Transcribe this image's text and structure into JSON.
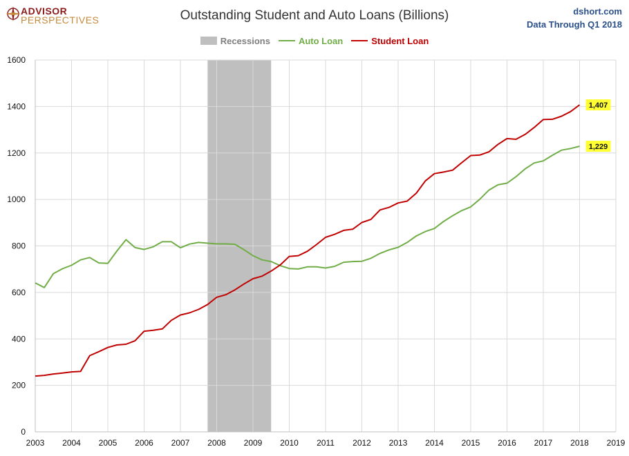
{
  "logo": {
    "top": "ADVISOR",
    "bottom": "PERSPECTIVES"
  },
  "source": {
    "line1": "dshort.com",
    "line2": "Data Through Q1 2018"
  },
  "colors": {
    "auto": "#70ad47",
    "student": "#c00000",
    "recession": "#bfbfbf",
    "highlight": "#ffff33",
    "grid": "#d9d9d9"
  },
  "chart_data": {
    "type": "line",
    "title": "Outstanding Student and Auto Loans (Billions)",
    "xlabel": "",
    "ylabel": "",
    "xlim": [
      2003,
      2019
    ],
    "ylim": [
      0,
      1600
    ],
    "x_ticks": [
      "2003",
      "2004",
      "2005",
      "2006",
      "2007",
      "2008",
      "2009",
      "2010",
      "2011",
      "2012",
      "2013",
      "2014",
      "2015",
      "2016",
      "2017",
      "2018",
      "2019"
    ],
    "y_ticks": [
      "0",
      "200",
      "400",
      "600",
      "800",
      "1000",
      "1200",
      "1400",
      "1600"
    ],
    "grid": true,
    "legend_position": "top-center",
    "legend": [
      "Recessions",
      "Auto Loan",
      "Student Loan"
    ],
    "recessions": [
      {
        "start": 2007.75,
        "end": 2009.5
      }
    ],
    "x": [
      2003.0,
      2003.25,
      2003.5,
      2003.75,
      2004.0,
      2004.25,
      2004.5,
      2004.75,
      2005.0,
      2005.25,
      2005.5,
      2005.75,
      2006.0,
      2006.25,
      2006.5,
      2006.75,
      2007.0,
      2007.25,
      2007.5,
      2007.75,
      2008.0,
      2008.25,
      2008.5,
      2008.75,
      2009.0,
      2009.25,
      2009.5,
      2009.75,
      2010.0,
      2010.25,
      2010.5,
      2010.75,
      2011.0,
      2011.25,
      2011.5,
      2011.75,
      2012.0,
      2012.25,
      2012.5,
      2012.75,
      2013.0,
      2013.25,
      2013.5,
      2013.75,
      2014.0,
      2014.25,
      2014.5,
      2014.75,
      2015.0,
      2015.25,
      2015.5,
      2015.75,
      2016.0,
      2016.25,
      2016.5,
      2016.75,
      2017.0,
      2017.25,
      2017.5,
      2017.75,
      2018.0
    ],
    "series": [
      {
        "name": "Auto Loan",
        "values": [
          641,
          621,
          681,
          702,
          717,
          740,
          750,
          727,
          725,
          778,
          827,
          793,
          785,
          796,
          818,
          818,
          792,
          808,
          815,
          812,
          809,
          809,
          807,
          784,
          758,
          740,
          733,
          715,
          703,
          701,
          710,
          710,
          705,
          712,
          730,
          733,
          734,
          747,
          768,
          783,
          794,
          815,
          843,
          862,
          875,
          905,
          930,
          952,
          968,
          1001,
          1040,
          1063,
          1070,
          1098,
          1132,
          1157,
          1166,
          1190,
          1212,
          1219,
          1229
        ]
      },
      {
        "name": "Student Loan",
        "values": [
          240,
          243,
          249,
          253,
          258,
          260,
          328,
          345,
          363,
          374,
          377,
          392,
          433,
          437,
          443,
          480,
          503,
          512,
          527,
          548,
          579,
          590,
          611,
          636,
          659,
          670,
          692,
          718,
          755,
          758,
          777,
          806,
          837,
          850,
          867,
          872,
          901,
          914,
          955,
          966,
          985,
          993,
          1027,
          1080,
          1111,
          1118,
          1126,
          1158,
          1189,
          1191,
          1205,
          1237,
          1262,
          1259,
          1280,
          1310,
          1344,
          1345,
          1358,
          1378,
          1407
        ]
      }
    ],
    "end_labels": [
      "1,407",
      "1,229"
    ]
  }
}
